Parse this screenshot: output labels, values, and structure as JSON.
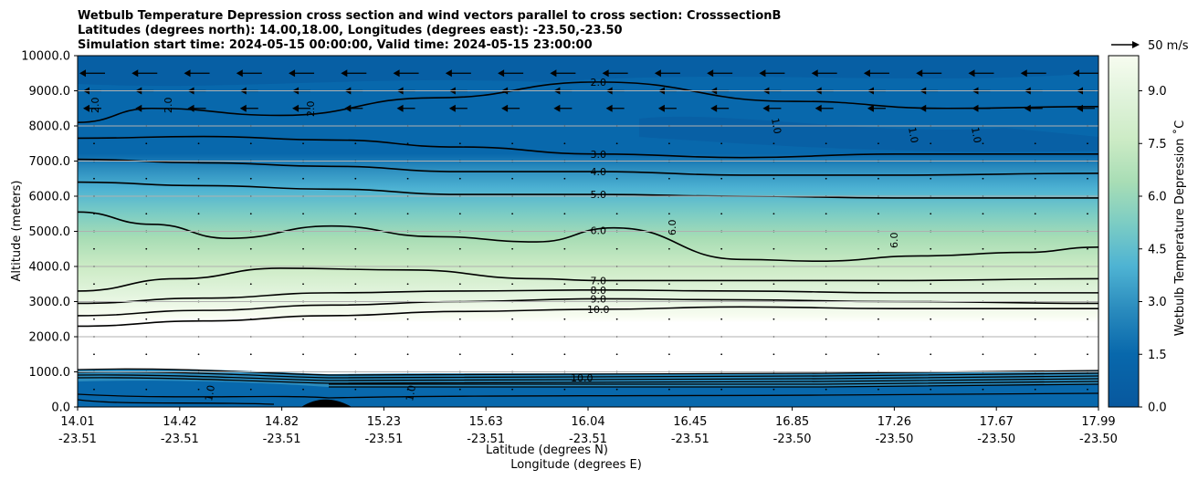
{
  "chart_data": {
    "type": "heatmap",
    "title_lines": [
      "Wetbulb Temperature Depression cross section and wind vectors parallel to cross section: CrosssectionB",
      "Latitudes (degrees north): 14.00,18.00, Longitudes (degrees east): -23.50,-23.50",
      "Simulation start time: 2024-05-15 00:00:00, Valid time: 2024-05-15 23:00:00"
    ],
    "ylabel": "Altitude (meters)",
    "xlabel_lat": "Latitude (degrees N)",
    "xlabel_lon": "Longitude (degrees E)",
    "ylim": [
      0,
      10000
    ],
    "y_ticks": [
      "0.0",
      "1000.0",
      "2000.0",
      "3000.0",
      "4000.0",
      "5000.0",
      "6000.0",
      "7000.0",
      "8000.0",
      "9000.0",
      "10000.0"
    ],
    "x_ticks_lat": [
      "14.01",
      "14.42",
      "14.82",
      "15.23",
      "15.63",
      "16.04",
      "16.45",
      "16.85",
      "17.26",
      "17.67",
      "17.99"
    ],
    "x_ticks_lon": [
      "-23.51",
      "-23.51",
      "-23.51",
      "-23.51",
      "-23.51",
      "-23.51",
      "-23.51",
      "-23.50",
      "-23.50",
      "-23.50",
      "-23.50"
    ],
    "colorbar": {
      "label": "Wetbulb Temperature Depression ˚C",
      "range": [
        0,
        10
      ],
      "ticks": [
        "0.0",
        "1.5",
        "3.0",
        "4.5",
        "6.0",
        "7.5",
        "9.0"
      ],
      "colors": [
        "#08589e",
        "#0868ac",
        "#2b8cbe",
        "#4eb3d3",
        "#7bccc4",
        "#a8ddb5",
        "#ccebc5",
        "#e0f3db",
        "#f7fcf0"
      ]
    },
    "wind_legend": "50 m/s",
    "contour_lines": [
      {
        "value": 2.0,
        "label": "2.0",
        "x": [
          14.01,
          14.3,
          14.8,
          15.4,
          16.04,
          16.8,
          17.4,
          17.99
        ],
        "y": [
          8100,
          8500,
          8300,
          8800,
          9250,
          8700,
          8500,
          8550
        ]
      },
      {
        "value": 3.0,
        "label": "3.0",
        "x": [
          14.01,
          14.5,
          15.0,
          15.5,
          16.04,
          16.6,
          17.2,
          17.99
        ],
        "y": [
          7650,
          7700,
          7600,
          7400,
          7200,
          7100,
          7200,
          7200
        ]
      },
      {
        "value": 4.0,
        "label": "4.0",
        "x": [
          14.01,
          14.5,
          15.0,
          15.5,
          16.04,
          16.6,
          17.2,
          17.99
        ],
        "y": [
          7050,
          6950,
          6850,
          6700,
          6700,
          6600,
          6600,
          6650
        ]
      },
      {
        "value": 5.0,
        "label": "5.0",
        "x": [
          14.01,
          14.5,
          15.0,
          15.5,
          16.04,
          16.6,
          17.2,
          17.99
        ],
        "y": [
          6400,
          6300,
          6200,
          6050,
          6050,
          6000,
          5950,
          5950
        ]
      },
      {
        "value": 6.0,
        "label": "6.0",
        "x": [
          14.01,
          14.3,
          14.6,
          15.0,
          15.4,
          15.8,
          16.1,
          16.6,
          16.9,
          17.3,
          17.7,
          17.99
        ],
        "y": [
          5550,
          5200,
          4800,
          5150,
          4850,
          4700,
          5100,
          4200,
          4150,
          4300,
          4400,
          4550
        ]
      },
      {
        "value": 7.0,
        "label": "7.0",
        "x": [
          14.01,
          14.4,
          14.8,
          15.3,
          15.8,
          16.04,
          16.6,
          17.2,
          17.99
        ],
        "y": [
          3300,
          3650,
          3950,
          3900,
          3650,
          3600,
          3600,
          3600,
          3650
        ]
      },
      {
        "value": 8.0,
        "label": "8.0",
        "x": [
          14.01,
          14.5,
          15.0,
          15.5,
          16.04,
          16.6,
          17.2,
          17.99
        ],
        "y": [
          2950,
          3100,
          3250,
          3300,
          3330,
          3300,
          3250,
          3250
        ]
      },
      {
        "value": 9.0,
        "label": "9.0",
        "x": [
          14.01,
          14.5,
          15.0,
          15.5,
          16.04,
          16.6,
          17.2,
          17.99
        ],
        "y": [
          2600,
          2750,
          2900,
          3000,
          3080,
          3050,
          3000,
          2950
        ]
      },
      {
        "value": 10.0,
        "label": "10.0",
        "x": [
          14.01,
          14.5,
          15.0,
          15.5,
          16.04,
          16.6,
          17.2,
          17.99
        ],
        "y": [
          2300,
          2450,
          2600,
          2720,
          2780,
          2850,
          2800,
          2800
        ]
      }
    ],
    "contour_labels_extra": [
      "2.0",
      "2.0",
      "2.0",
      "2.0",
      "6.0",
      "6.0",
      "1.0",
      "1.0",
      "1.0",
      "1.0",
      "10.0",
      "1.0"
    ]
  }
}
